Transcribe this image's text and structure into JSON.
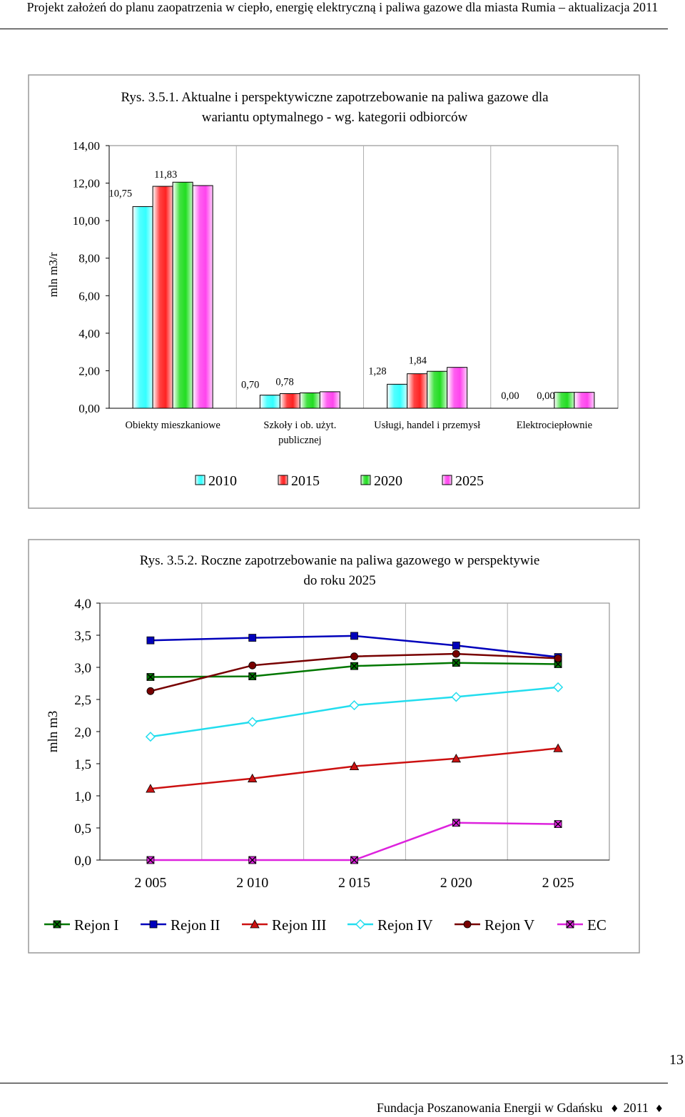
{
  "header": {
    "text": "Projekt założeń do planu zaopatrzenia w ciepło, energię elektryczną i paliwa gazowe dla miasta Rumia – aktualizacja 2011"
  },
  "footer": {
    "text": "Fundacja Poszanowania Energii w Gdańsku",
    "year": "2011",
    "diamond_glyph": "♦"
  },
  "page_number": "13",
  "chart_data": [
    {
      "type": "bar",
      "title_line1": "Rys. 3.5.1. Aktualne i perspektywiczne zapotrzebowanie na paliwa gazowe dla",
      "title_line2": "wariantu optymalnego - wg. kategorii odbiorców",
      "ylabel": "mln m3/r",
      "ylim": [
        0,
        14
      ],
      "yticks": [
        "0,00",
        "2,00",
        "4,00",
        "6,00",
        "8,00",
        "10,00",
        "12,00",
        "14,00"
      ],
      "categories": [
        "Obiekty mieszkaniowe",
        "Szkoły i ob. użyt.",
        "Usługi, handel i przemysł",
        "Elektrociepłownie"
      ],
      "category_line2": [
        "",
        "publicznej",
        "",
        ""
      ],
      "series": [
        {
          "name": "2010",
          "values": [
            10.75,
            0.7,
            1.28,
            0.0
          ],
          "color": "#33ffff"
        },
        {
          "name": "2015",
          "values": [
            11.83,
            0.78,
            1.84,
            0.0
          ],
          "color": "#ff2222"
        },
        {
          "name": "2020",
          "values": [
            12.05,
            0.82,
            1.97,
            0.85
          ],
          "color": "#22dd22"
        },
        {
          "name": "2025",
          "values": [
            11.87,
            0.88,
            2.18,
            0.85
          ],
          "color": "#ff44ee"
        }
      ],
      "data_labels": [
        {
          "text": "10,75",
          "series": 0,
          "category": 0
        },
        {
          "text": "11,83",
          "series": 1,
          "category": 0
        },
        {
          "text": "0,70",
          "series": 0,
          "category": 1
        },
        {
          "text": "0,78",
          "series": 1,
          "category": 1
        },
        {
          "text": "1,28",
          "series": 0,
          "category": 2
        },
        {
          "text": "1,84",
          "series": 1,
          "category": 2
        },
        {
          "text": "0,00",
          "series": 0,
          "category": 3
        },
        {
          "text": "0,00",
          "series": 1,
          "category": 3
        }
      ],
      "legend_position": "bottom",
      "grid": "vertical"
    },
    {
      "type": "line",
      "title_line1": "Rys. 3.5.2. Roczne zapotrzebowanie na paliwa gazowego w perspektywie",
      "title_line2": "do roku 2025",
      "ylabel": "mln m3",
      "ylim": [
        0,
        4
      ],
      "yticks": [
        "0,0",
        "0,5",
        "1,0",
        "1,5",
        "2,0",
        "2,5",
        "3,0",
        "3,5",
        "4,0"
      ],
      "x": [
        "2 005",
        "2 010",
        "2 015",
        "2 020",
        "2 025"
      ],
      "series": [
        {
          "name": "Rejon I",
          "values": [
            2.85,
            2.86,
            3.02,
            3.07,
            3.05
          ],
          "color": "#007700",
          "marker": "x"
        },
        {
          "name": "Rejon II",
          "values": [
            3.42,
            3.46,
            3.49,
            3.34,
            3.16
          ],
          "color": "#0000bb",
          "marker": "square"
        },
        {
          "name": "Rejon III",
          "values": [
            1.11,
            1.27,
            1.46,
            1.58,
            1.74
          ],
          "color": "#cc1111",
          "marker": "triangle"
        },
        {
          "name": "Rejon IV",
          "values": [
            1.92,
            2.15,
            2.41,
            2.54,
            2.69
          ],
          "color": "#22ddee",
          "marker": "diamond"
        },
        {
          "name": "Rejon V",
          "values": [
            2.63,
            3.03,
            3.17,
            3.21,
            3.14
          ],
          "color": "#770000",
          "marker": "circle"
        },
        {
          "name": "EC",
          "values": [
            0.0,
            0.0,
            0.0,
            0.58,
            0.56
          ],
          "color": "#dd22dd",
          "marker": "x"
        }
      ],
      "legend_position": "bottom",
      "grid": "vertical"
    }
  ]
}
